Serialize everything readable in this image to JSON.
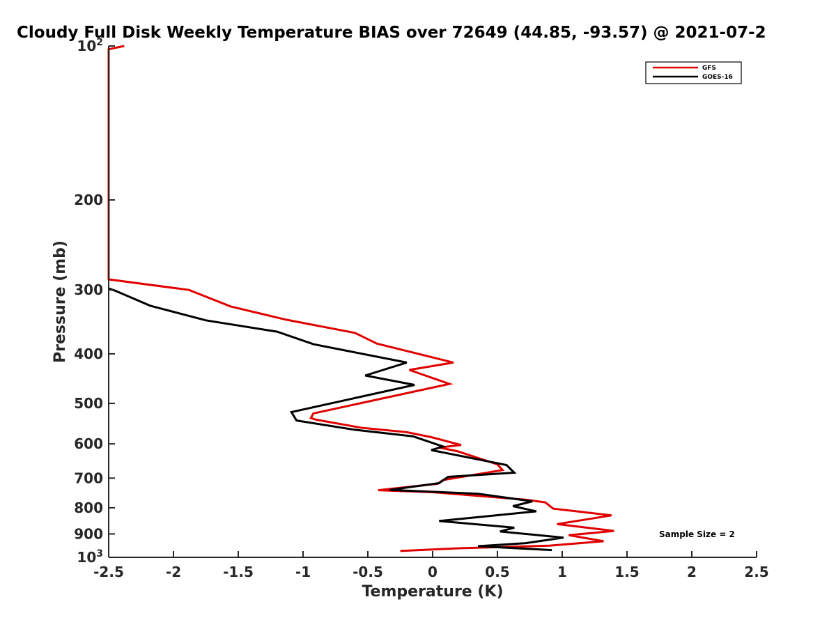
{
  "chart_data": {
    "type": "line",
    "title": "Cloudy Full Disk Weekly Temperature BIAS over 72649 (44.85, -93.57) @ 2021-07-2",
    "xlabel": "Temperature (K)",
    "ylabel": "Pressure (mb)",
    "xlim": [
      -2.5,
      2.5
    ],
    "ylim": [
      100,
      1000
    ],
    "y_scale": "log",
    "y_reversed": true,
    "grid": false,
    "legend_position": "top-right",
    "x_ticks": [
      -2.5,
      -2,
      -1.5,
      -1,
      -0.5,
      0,
      0.5,
      1,
      1.5,
      2,
      2.5
    ],
    "x_tick_labels": [
      "-2.5",
      "-2",
      "-1.5",
      "-1",
      "-0.5",
      "0",
      "0.5",
      "1",
      "1.5",
      "2",
      "2.5"
    ],
    "y_ticks": [
      200,
      300,
      400,
      500,
      600,
      700,
      800,
      900
    ],
    "y_tick_labels": [
      "200",
      "300",
      "400",
      "500",
      "600",
      "700",
      "800",
      "900"
    ],
    "y_tick_power_labels": [
      {
        "value": 100,
        "base": "10",
        "exp": "2"
      },
      {
        "value": 1000,
        "base": "10",
        "exp": "3"
      }
    ],
    "annotation": "Sample Size = 2",
    "series": [
      {
        "name": "GFS",
        "color": "#e00000",
        "points": [
          [
            -2.38,
            100
          ],
          [
            -2.5,
            101.5
          ],
          [
            -2.5,
            286
          ],
          [
            -1.88,
            300
          ],
          [
            -1.56,
            323
          ],
          [
            -1.13,
            343
          ],
          [
            -0.6,
            364
          ],
          [
            -0.43,
            382
          ],
          [
            0.16,
            416
          ],
          [
            -0.18,
            430
          ],
          [
            0.13,
            458
          ],
          [
            -0.92,
            523
          ],
          [
            -0.94,
            534
          ],
          [
            -0.9,
            538
          ],
          [
            -0.55,
            558
          ],
          [
            -0.2,
            569
          ],
          [
            -0.01,
            582
          ],
          [
            0.22,
            603
          ],
          [
            0.05,
            610
          ],
          [
            0.19,
            620
          ],
          [
            0.5,
            658
          ],
          [
            0.54,
            675
          ],
          [
            0.08,
            706
          ],
          [
            0.04,
            718
          ],
          [
            -0.42,
            739
          ],
          [
            0.01,
            746
          ],
          [
            0.73,
            772
          ],
          [
            0.87,
            781
          ],
          [
            0.93,
            803
          ],
          [
            1.38,
            828
          ],
          [
            0.96,
            861
          ],
          [
            1.4,
            888
          ],
          [
            1.05,
            905
          ],
          [
            1.32,
            930
          ],
          [
            0.9,
            949
          ],
          [
            0.2,
            960
          ],
          [
            -0.25,
            972
          ]
        ]
      },
      {
        "name": "GOES-16",
        "color": "#000000",
        "points": [
          [
            -2.5,
            298
          ],
          [
            -2.45,
            301
          ],
          [
            -2.18,
            322
          ],
          [
            -1.75,
            344
          ],
          [
            -1.2,
            362
          ],
          [
            -0.92,
            383
          ],
          [
            -0.2,
            416
          ],
          [
            -0.52,
            441
          ],
          [
            -0.14,
            460
          ],
          [
            -1.09,
            520
          ],
          [
            -1.05,
            540
          ],
          [
            -0.6,
            563
          ],
          [
            -0.15,
            580
          ],
          [
            0.08,
            607
          ],
          [
            -0.01,
            617
          ],
          [
            0.57,
            660
          ],
          [
            0.63,
            683
          ],
          [
            0.12,
            696
          ],
          [
            0.05,
            716
          ],
          [
            -0.33,
            738
          ],
          [
            0.35,
            751
          ],
          [
            0.77,
            777
          ],
          [
            0.62,
            794
          ],
          [
            0.8,
            813
          ],
          [
            0.3,
            837
          ],
          [
            0.05,
            849
          ],
          [
            0.63,
            875
          ],
          [
            0.52,
            890
          ],
          [
            1.01,
            915
          ],
          [
            0.72,
            938
          ],
          [
            0.35,
            951
          ],
          [
            0.92,
            968
          ]
        ]
      }
    ]
  }
}
